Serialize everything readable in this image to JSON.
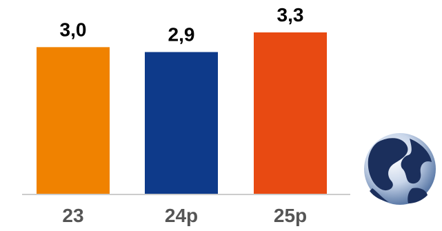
{
  "chart_data": {
    "type": "bar",
    "title": "",
    "xlabel": "",
    "ylabel": "",
    "categories": [
      "23",
      "24p",
      "25p"
    ],
    "values": [
      3.0,
      2.9,
      3.3
    ],
    "value_labels": [
      "3,0",
      "2,9",
      "3,3"
    ],
    "bar_colors": [
      "#F08200",
      "#0E3A8A",
      "#E84A12"
    ],
    "ylim": [
      0,
      3.3
    ],
    "grid": false,
    "legend": "none"
  },
  "decoration": {
    "globe_icon": "globe-icon"
  },
  "colors": {
    "axis": "#CCCCCC",
    "category_text": "#555555",
    "value_text": "#000000"
  }
}
